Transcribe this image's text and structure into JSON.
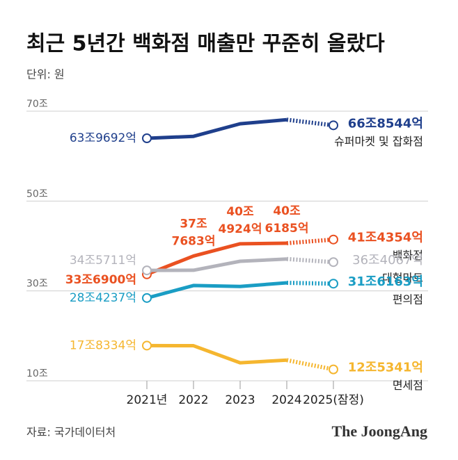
{
  "chart_data": {
    "type": "line",
    "title": "최근 5년간 백화점 매출만 꾸준히 올랐다",
    "subtitle": "단위: 원",
    "source": "자료: 국가데이터처",
    "brand": "The JoongAng",
    "categories": [
      "2021년",
      "2022",
      "2023",
      "2024",
      "2025(잠정)"
    ],
    "ylim": [
      6.5,
      76
    ],
    "yticks": [
      {
        "value": 10,
        "label": "10조"
      },
      {
        "value": 30,
        "label": "30조"
      },
      {
        "value": 50,
        "label": "50조"
      },
      {
        "value": 70,
        "label": "70조"
      }
    ],
    "grid": true,
    "last_segment_dashed": true,
    "series": [
      {
        "name": "슈퍼마켓 및 잡화점",
        "color": "#1f3f8c",
        "values": [
          63.9692,
          64.4,
          67.2,
          68.1,
          66.8544
        ],
        "value_labels": [
          "63조9692억",
          null,
          null,
          null,
          "66조8544억"
        ]
      },
      {
        "name": "백화점",
        "color": "#ea5121",
        "values": [
          33.69,
          37.7683,
          40.4924,
          40.6185,
          41.4354
        ],
        "value_labels": [
          "33조6900억",
          [
            "37조",
            "7683억"
          ],
          [
            "40조",
            "4924억"
          ],
          [
            "40조",
            "6185억"
          ],
          "41조4354억"
        ]
      },
      {
        "name": "대형마트",
        "color": "#b3b3bb",
        "values": [
          34.5711,
          34.6,
          36.6,
          37.1,
          36.4067
        ],
        "value_labels": [
          "34조5711억",
          null,
          null,
          null,
          "36조4067억"
        ]
      },
      {
        "name": "편의점",
        "color": "#1a9dc4",
        "values": [
          28.4237,
          31.2,
          31.0,
          31.8,
          31.6163
        ],
        "value_labels": [
          "28조4237억",
          null,
          null,
          null,
          "31조6163억"
        ]
      },
      {
        "name": "면세점",
        "color": "#f5b62f",
        "values": [
          17.8334,
          17.8,
          14.0,
          14.6,
          12.5341
        ],
        "value_labels": [
          "17조8334억",
          null,
          null,
          null,
          "12조5341억"
        ]
      }
    ]
  }
}
